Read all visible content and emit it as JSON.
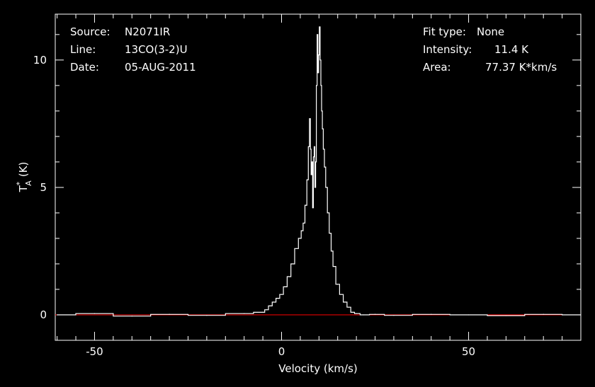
{
  "info_left": [
    {
      "key": "Source:",
      "value": "N2071IR"
    },
    {
      "key": "Line:",
      "value": "13CO(3-2)U"
    },
    {
      "key": "Date:",
      "value": "05-AUG-2011"
    }
  ],
  "info_right": [
    {
      "key": "Fit type:",
      "value": "None"
    },
    {
      "key": "Intensity:",
      "value": "11.4 K"
    },
    {
      "key": "Area:",
      "value": "77.37 K*km/s"
    }
  ],
  "colors": {
    "background": "#000000",
    "axes": "#ffffff",
    "spectrum": "#ffffff",
    "baseline": "#ff0000"
  },
  "chart_data": {
    "type": "line",
    "xlabel": "Velocity (km/s)",
    "ylabel_main": "T",
    "ylabel_sup": "*",
    "ylabel_sub": "A",
    "ylabel_unit": "(K)",
    "xlim": [
      -60.5,
      80
    ],
    "ylim": [
      -1,
      11.8
    ],
    "xticks": [
      -50,
      0,
      50
    ],
    "xtick_labels": [
      "-50",
      "0",
      "50"
    ],
    "yticks": [
      0,
      5,
      10
    ],
    "ytick_labels": [
      "0",
      "5",
      "10"
    ],
    "baseline": 0,
    "series": [
      {
        "x": [
          -60,
          -50,
          -40,
          -30,
          -20,
          -10,
          -5,
          -4,
          -3,
          -2,
          -1,
          0,
          1,
          2,
          3,
          4,
          5,
          5.5,
          6,
          6.5,
          7,
          7.3,
          7.6,
          7.8,
          8,
          8.2,
          8.4,
          8.6,
          8.8,
          9,
          9.2,
          9.4,
          9.6,
          9.8,
          10,
          10.2,
          10.4,
          10.6,
          10.8,
          11,
          11.3,
          11.6,
          12,
          12.5,
          13,
          13.5,
          14,
          15,
          16,
          17,
          18,
          19,
          20,
          22,
          25,
          30,
          40,
          50,
          60,
          70,
          80
        ],
        "y": [
          0,
          0.05,
          -0.05,
          0.02,
          -0.02,
          0.05,
          0.1,
          0.2,
          0.35,
          0.5,
          0.65,
          0.8,
          1.1,
          1.5,
          2.0,
          2.6,
          3.0,
          3.3,
          3.6,
          4.3,
          5.3,
          6.6,
          7.7,
          6.5,
          5.5,
          6.0,
          4.2,
          6.2,
          6.6,
          5.0,
          6.0,
          9.0,
          11.0,
          9.5,
          10.2,
          11.3,
          10.0,
          9.0,
          8.0,
          7.3,
          6.5,
          5.8,
          5.0,
          4.0,
          3.2,
          2.5,
          1.9,
          1.2,
          0.8,
          0.5,
          0.3,
          0.1,
          0.05,
          0.0,
          0.02,
          -0.02,
          0.02,
          0.0,
          -0.03,
          0.02,
          0.0
        ]
      }
    ]
  }
}
